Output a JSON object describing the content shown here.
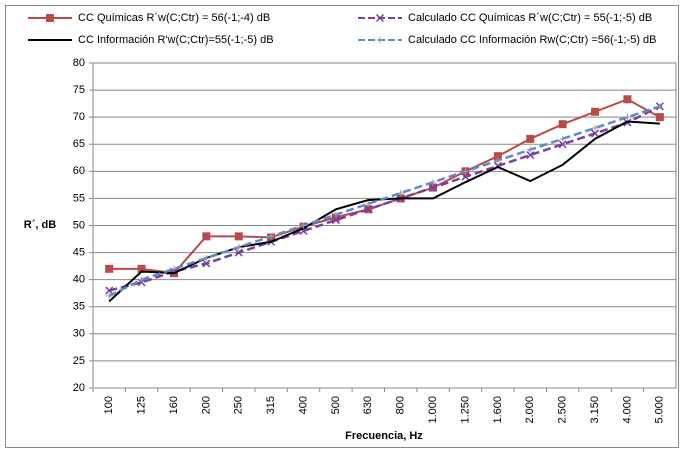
{
  "chart_data": {
    "type": "line",
    "ylabel": "R´, dB",
    "xlabel": "Frecuencia, Hz",
    "categories": [
      "100",
      "125",
      "160",
      "200",
      "250",
      "315",
      "400",
      "500",
      "630",
      "800",
      "1.000",
      "1.250",
      "1.600",
      "2.000",
      "2.500",
      "3.150",
      "4.000",
      "5.000"
    ],
    "ylim": [
      20,
      80
    ],
    "yticks": [
      20,
      25,
      30,
      35,
      40,
      45,
      50,
      55,
      60,
      65,
      70,
      75,
      80
    ],
    "grid": true,
    "series": [
      {
        "name": "CC Químicas R´w(C;Ctr) = 56(-1;-4) dB",
        "color": "#b94a48",
        "marker": "square",
        "dashed": false,
        "values": [
          42,
          42,
          41.2,
          48,
          48,
          47.8,
          49.8,
          51.5,
          53,
          55,
          57,
          60,
          62.8,
          66,
          68.7,
          71,
          73.3,
          70
        ]
      },
      {
        "name": "Calculado CC Químicas R´w(C;Ctr) = 55(-1;-5) dB",
        "color": "#7b3fa0",
        "marker": "x",
        "dashed": true,
        "values": [
          38,
          39.5,
          41.5,
          43,
          45,
          47,
          49,
          51,
          53,
          55,
          57,
          59,
          61,
          63,
          65,
          67,
          69,
          72
        ]
      },
      {
        "name": "CC Información R'w(C;Ctr)=55(-1;-5) dB",
        "color": "#000000",
        "marker": "none",
        "dashed": false,
        "values": [
          36,
          41.5,
          41.2,
          44,
          46,
          47,
          49.5,
          53,
          54.7,
          55,
          55,
          58,
          60.8,
          58.2,
          61.2,
          66,
          69.2,
          68.8
        ]
      },
      {
        "name": "Calculado CC Información Rw(C;Ctr) =56(-1;-5) dB",
        "color": "#5b8cc8",
        "marker": "cross",
        "dashed": true,
        "values": [
          37,
          40,
          42,
          44,
          46,
          48,
          50,
          52,
          54,
          56,
          58,
          60,
          62,
          64,
          66,
          68,
          70,
          72
        ]
      }
    ]
  }
}
